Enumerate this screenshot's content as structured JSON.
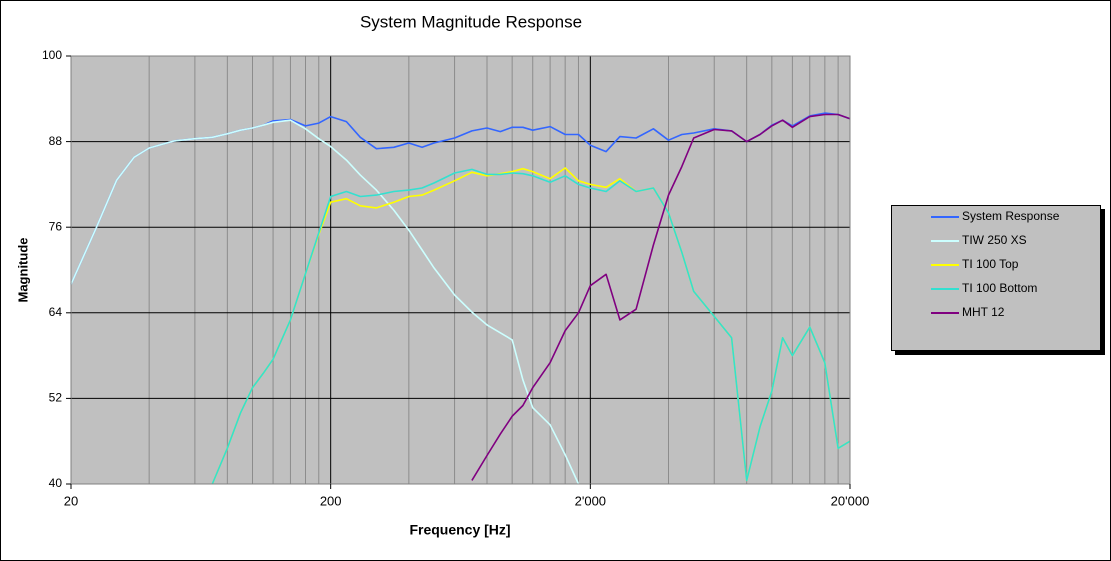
{
  "chart_data": {
    "type": "line",
    "title": "System Magnitude Response",
    "x_label": "Frequency [Hz]",
    "y_label": "Magnitude",
    "x_scale": "log",
    "minor_grid": true,
    "grid": true,
    "legend_position": "right",
    "xlim": [
      20,
      20000
    ],
    "xticks": [
      20,
      200,
      {
        "value": 2000,
        "label": "2'000"
      },
      {
        "value": 20000,
        "label": "20'000"
      }
    ],
    "ylim": [
      40,
      100
    ],
    "yticks": [
      40,
      52,
      64,
      76,
      88,
      100
    ],
    "x": [
      20,
      25,
      30,
      35,
      40,
      50,
      60,
      70,
      80,
      90,
      100,
      110,
      120,
      140,
      160,
      180,
      200,
      230,
      260,
      300,
      350,
      400,
      450,
      500,
      600,
      700,
      800,
      900,
      1000,
      1100,
      1200,
      1400,
      1600,
      1800,
      2000,
      2300,
      2600,
      3000,
      3500,
      4000,
      4500,
      5000,
      6000,
      7000,
      8000,
      9000,
      10000,
      11000,
      12000,
      14000,
      16000,
      18000,
      20000
    ],
    "series": [
      {
        "name": "System Response",
        "color": "#3366ff",
        "values": [
          68,
          75.9,
          82.6,
          85.8,
          87.1,
          88.1,
          88.4,
          88.6,
          89.1,
          89.6,
          89.9,
          90.3,
          90.9,
          91.1,
          90.2,
          90.6,
          91.5,
          90.8,
          88.6,
          87.0,
          87.2,
          87.8,
          87.2,
          87.8,
          88.5,
          89.5,
          89.9,
          89.4,
          90.0,
          90.0,
          89.6,
          90.1,
          89.0,
          89.0,
          87.5,
          86.6,
          88.7,
          88.5,
          89.8,
          88.2,
          89.0,
          89.2,
          89.8,
          89.5,
          88.0,
          89.0,
          90.3,
          91.0,
          90.2,
          91.6,
          92.0,
          91.8,
          91.2
        ]
      },
      {
        "name": "TIW 250 XS",
        "color": "#ccffff",
        "values": [
          68,
          75.9,
          82.6,
          85.8,
          87.1,
          88.1,
          88.4,
          88.6,
          89.1,
          89.6,
          89.9,
          90.3,
          90.7,
          91.0,
          89.8,
          88.4,
          87.3,
          85.4,
          83.3,
          81.2,
          78.4,
          75.6,
          72.8,
          70.3,
          66.5,
          64.1,
          62.3,
          61.2,
          60.2,
          54.6,
          50.7,
          48.3,
          44.1,
          40,
          null,
          null,
          null,
          null,
          null,
          null,
          null,
          null,
          null,
          null,
          null,
          null,
          null,
          null,
          null,
          null,
          null,
          null,
          null
        ]
      },
      {
        "name": "TI 100 Top",
        "color": "#ffff00",
        "values": [
          null,
          null,
          null,
          null,
          null,
          null,
          null,
          40,
          45,
          50,
          53.5,
          55.5,
          57.5,
          63,
          69.5,
          75,
          79.5,
          80.0,
          79.0,
          78.7,
          79.5,
          80.3,
          80.5,
          81.2,
          82.5,
          83.7,
          83.2,
          83.5,
          83.8,
          84.2,
          83.8,
          82.8,
          84.3,
          82.5,
          82.0,
          81.6,
          82.8,
          81.0,
          81.5,
          78.0,
          72.5,
          67.0,
          63.5,
          60.5,
          40.5,
          48,
          53,
          60.5,
          58,
          62,
          57,
          45,
          46
        ]
      },
      {
        "name": "TI 100 Bottom",
        "color": "#33e0d0",
        "values": [
          null,
          null,
          null,
          null,
          null,
          null,
          null,
          40,
          45,
          50,
          53.5,
          55.5,
          57.5,
          63,
          69.5,
          75.2,
          80.3,
          81.0,
          80.3,
          80.5,
          81.0,
          81.2,
          81.5,
          82.2,
          83.6,
          84.1,
          83.4,
          83.4,
          83.6,
          83.5,
          83.2,
          82.3,
          83.2,
          82.0,
          81.5,
          81.0,
          82.5,
          81.0,
          81.5,
          78.0,
          72.5,
          67.0,
          63.5,
          60.5,
          40.5,
          48,
          53,
          60.5,
          58,
          62,
          57,
          45,
          46
        ]
      },
      {
        "name": "MHT 12",
        "color": "#800080",
        "values": [
          null,
          null,
          null,
          null,
          null,
          null,
          null,
          null,
          null,
          null,
          null,
          null,
          null,
          null,
          null,
          null,
          null,
          null,
          null,
          null,
          null,
          null,
          null,
          null,
          null,
          40.5,
          44,
          47,
          49.5,
          51.0,
          53.5,
          57,
          61.5,
          64,
          67.8,
          69.4,
          63,
          64.5,
          73.5,
          80.5,
          84.5,
          88.5,
          89.7,
          89.5,
          88.0,
          89.0,
          90.2,
          91.0,
          90.0,
          91.5,
          91.8,
          91.8,
          91.2
        ]
      }
    ]
  }
}
